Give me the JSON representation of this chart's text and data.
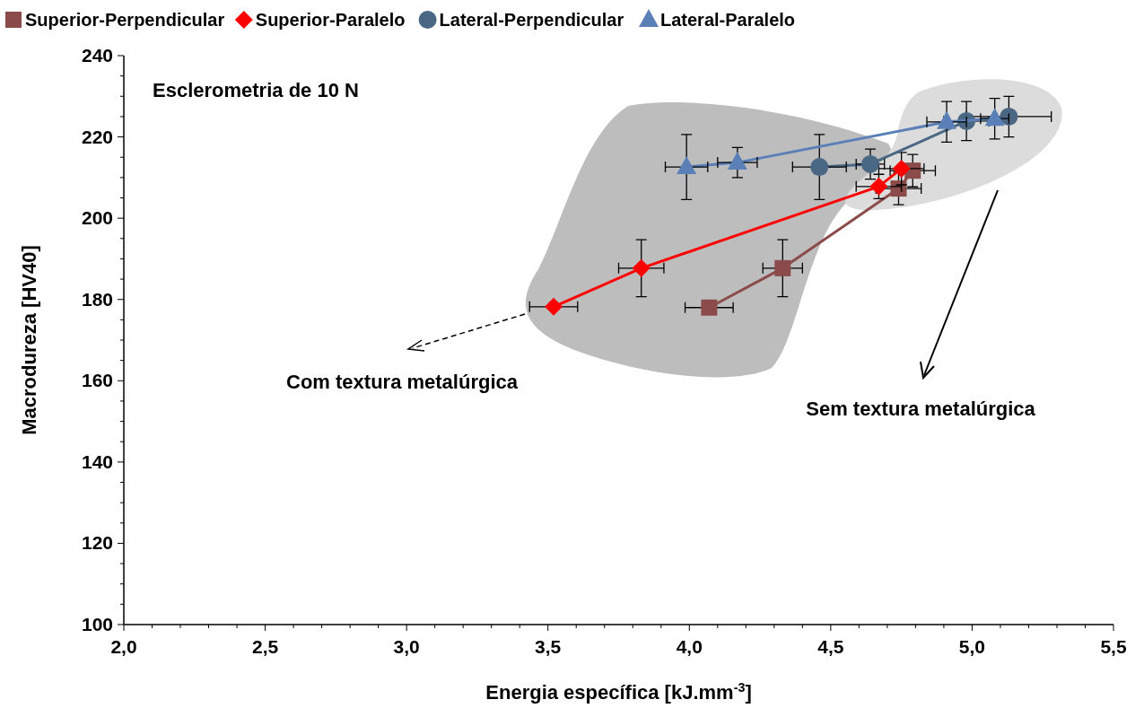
{
  "chart_data": {
    "type": "line",
    "xlabel": "Energia específica [kJ.mm$^{-3}$]",
    "ylabel": "Macrodureza [HV40]",
    "annotations": [
      "Esclerometria  de 10 N",
      "Com textura metalúrgica",
      "Sem textura metalúrgica"
    ],
    "xlim": [
      2,
      5.5
    ],
    "xticks": [
      {
        "value": 2,
        "label": "2,0"
      },
      {
        "value": 2.5,
        "label": "2,5"
      },
      {
        "value": 3,
        "label": "3,0"
      },
      {
        "value": 3.5,
        "label": "3,5"
      },
      {
        "value": 4,
        "label": "4,0"
      },
      {
        "value": 4.5,
        "label": "4,5"
      },
      {
        "value": 5,
        "label": "5,0"
      },
      {
        "value": 5.5,
        "label": "5,5"
      }
    ],
    "ylim": [
      100,
      240
    ],
    "yticks": [
      100,
      120,
      140,
      160,
      180,
      200,
      220,
      240
    ],
    "legend": "top",
    "grid": false,
    "series": [
      {
        "name": "Superior-Perpendicular",
        "color": "#8b4b4b",
        "marker": "square",
        "x": [
          4.07,
          4.33,
          4.74,
          4.79
        ],
        "values": [
          178,
          187.7,
          207.3,
          211.7
        ],
        "errors": [
          null,
          7,
          4,
          4
        ],
        "xerrors": [
          0.085,
          0.07,
          0.08,
          0.08
        ]
      },
      {
        "name": "Superior-Paralelo",
        "color": "#ff0000",
        "marker": "diamond",
        "x": [
          3.52,
          3.83,
          4.67,
          4.75
        ],
        "values": [
          178.2,
          187.7,
          207.8,
          212.2
        ],
        "errors": [
          null,
          7,
          3,
          4
        ],
        "xerrors": [
          0.085,
          0.08,
          0.08,
          0.08
        ]
      },
      {
        "name": "Lateral-Perpendicular",
        "color": "#4a6784",
        "marker": "circle",
        "x": [
          4.46,
          4.64,
          4.98,
          5.13
        ],
        "values": [
          212.6,
          213.3,
          223.9,
          225
        ],
        "errors": [
          8,
          3.7,
          4.8,
          5
        ],
        "xerrors": [
          0.095,
          0.05,
          0.08,
          0.15
        ]
      },
      {
        "name": "Lateral-Paralelo",
        "color": "#5b80b8",
        "marker": "triangle",
        "x": [
          3.99,
          4.17,
          4.91,
          5.08
        ],
        "values": [
          212.6,
          213.7,
          223.7,
          224.5
        ],
        "errors": [
          8,
          3.7,
          5,
          5
        ],
        "xerrors": [
          0.075,
          0.07,
          0.07,
          0.05
        ]
      }
    ]
  }
}
